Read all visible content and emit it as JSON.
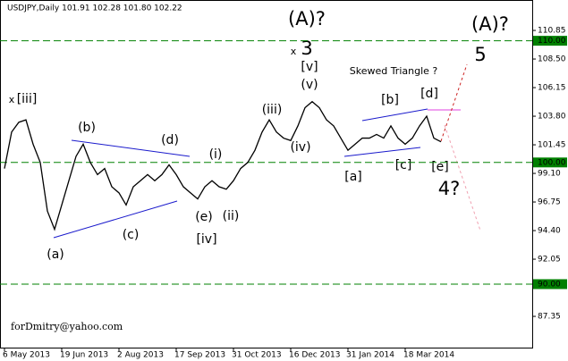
{
  "chart_data": {
    "type": "line",
    "title": "USDJPY,Daily  101.91 102.28 101.80 102.22",
    "watermark": "forDmitry@yahoo.com",
    "categories": [
      "6 May 2013",
      null,
      null,
      null,
      null,
      null,
      null,
      null,
      "19 Jun 2013",
      null,
      null,
      null,
      null,
      null,
      null,
      null,
      "2 Aug 2013",
      null,
      null,
      null,
      null,
      null,
      null,
      null,
      "17 Sep 2013",
      null,
      null,
      null,
      null,
      null,
      null,
      null,
      "31 Oct 2013",
      null,
      null,
      null,
      null,
      null,
      null,
      null,
      "16 Dec 2013",
      null,
      null,
      null,
      null,
      null,
      null,
      null,
      "31 Jan 2014",
      null,
      null,
      null,
      null,
      null,
      null,
      null,
      "18 Mar 2014",
      null,
      null,
      null,
      null,
      null
    ],
    "values": [
      99.5,
      102.5,
      103.3,
      103.5,
      101.5,
      100.0,
      96.0,
      94.5,
      96.5,
      98.5,
      100.5,
      101.5,
      100.0,
      99.0,
      99.5,
      98.0,
      97.5,
      96.5,
      98.0,
      98.5,
      99.0,
      98.5,
      99.0,
      99.8,
      99.0,
      98.0,
      97.5,
      97.0,
      98.0,
      98.5,
      98.0,
      97.8,
      98.5,
      99.5,
      100.0,
      101.0,
      102.5,
      103.5,
      102.5,
      102.0,
      101.8,
      103.0,
      104.5,
      105.0,
      104.5,
      103.5,
      103.0,
      102.0,
      101.0,
      101.5,
      102.0,
      102.0,
      102.3,
      102.0,
      103.0,
      102.0,
      101.5,
      102.0,
      103.0,
      103.8,
      102.0,
      101.7
    ],
    "color": "#000000",
    "ylim": [
      84.71,
      113.35
    ],
    "yticks": [
      {
        "value": 110.85,
        "label": "110.85"
      },
      {
        "value": 108.5,
        "label": "108.50"
      },
      106.15,
      {
        "value": 103.8,
        "label": "103.80"
      },
      101.45,
      {
        "value": 99.1,
        "label": "99.10"
      },
      96.75,
      {
        "value": 94.4,
        "label": "94.40"
      },
      92.05,
      87.35
    ],
    "hline_color": "#008000",
    "hlines": [
      {
        "value": 110,
        "label": "110.00"
      },
      {
        "value": 100,
        "label": "100.00"
      },
      {
        "value": 90,
        "label": "90.00"
      }
    ],
    "annotations": [
      {
        "text": "(A)?",
        "color": "#a9a9a9"
      },
      {
        "text": "(A)?",
        "color": "#1a1acc"
      },
      {
        "text": "x",
        "color": "#1a1acc"
      },
      {
        "text": "3",
        "color": "#8b1a1a"
      },
      {
        "text": "[v]",
        "color": "#2e8b2e"
      },
      {
        "text": "(v)",
        "color": "#1a1acc"
      },
      {
        "text": "Skewed Triangle ?",
        "color": "#1a1acc"
      },
      {
        "text": "5",
        "color": "#8b1a1a"
      },
      {
        "text": "x",
        "color": "#1a1acc"
      },
      {
        "text": "[iii]",
        "color": "#2e8b2e"
      },
      {
        "text": "(iii)",
        "color": "#1a1acc"
      },
      {
        "text": "[b]",
        "color": "#2e8b2e"
      },
      {
        "text": "[d]",
        "color": "#2e8b2e"
      },
      {
        "text": "(b)",
        "color": "#1a1acc"
      },
      {
        "text": "(d)",
        "color": "#1a1acc"
      },
      {
        "text": "(i)",
        "color": "#1a1acc"
      },
      {
        "text": "(iv)",
        "color": "#1a1acc"
      },
      {
        "text": "[a]",
        "color": "#2e8b2e"
      },
      {
        "text": "[c]",
        "color": "#2e8b2e"
      },
      {
        "text": "[e]",
        "color": "#2e8b2e"
      },
      {
        "text": "4?",
        "color": "#8b1a1a"
      },
      {
        "text": "(e)",
        "color": "#1a1acc"
      },
      {
        "text": "(ii)",
        "color": "#1a1acc"
      },
      {
        "text": "(c)",
        "color": "#1a1acc"
      },
      {
        "text": "[iv]",
        "color": "#2e8b2e"
      },
      {
        "text": "(a)",
        "color": "#1a1acc"
      }
    ]
  }
}
